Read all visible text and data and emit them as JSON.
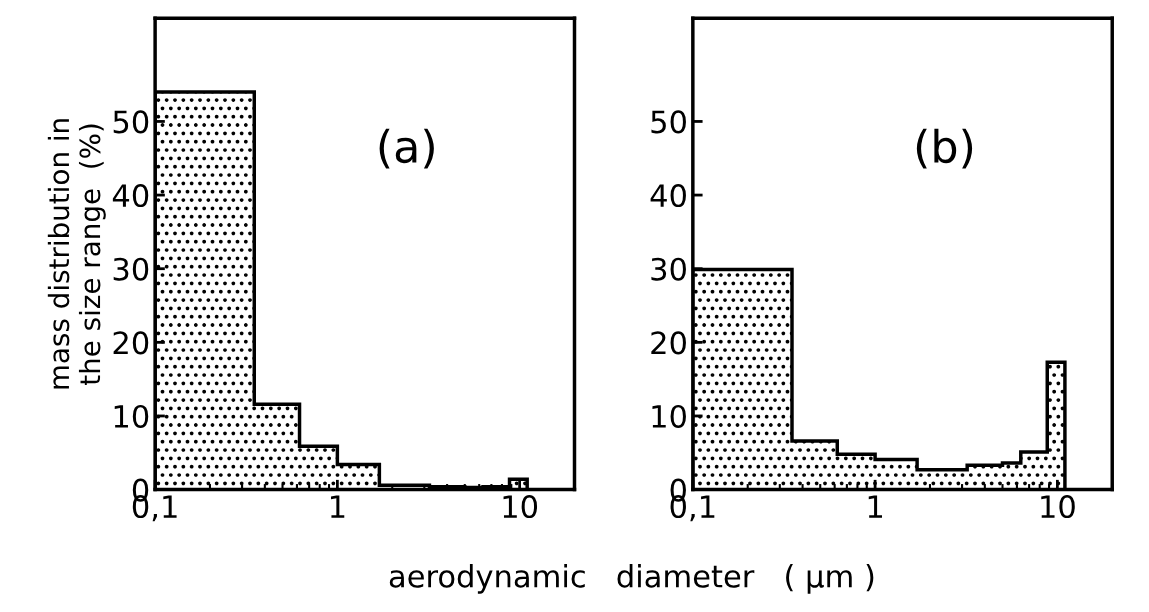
{
  "chart_data": [
    {
      "type": "histogram",
      "ylabel": "mass distribution in\nthe size range  (%)",
      "annotations": [
        "(a)"
      ],
      "log": "x",
      "color": "#000000",
      "bins": [
        0.1,
        0.35,
        0.62,
        1.0,
        1.7,
        3.2,
        5.0,
        6.3,
        8.8,
        11
      ],
      "values": [
        54,
        11.6,
        5.9,
        3.4,
        0.6,
        0.4,
        0.3,
        0.4,
        1.4
      ],
      "xlim": [
        0.1,
        20
      ],
      "xticks": [
        {
          "value": 0.1,
          "label": "0,1"
        },
        1,
        10
      ],
      "ylim": [
        0,
        64
      ],
      "yticks": [
        0,
        10,
        20,
        30,
        40,
        50
      ],
      "grid": false
    },
    {
      "type": "histogram",
      "xlabel": "aerodynamic   diameter   ( μm )",
      "annotations": [
        "(b)"
      ],
      "log": "x",
      "color": "#000000",
      "bins": [
        0.1,
        0.35,
        0.62,
        1.0,
        1.7,
        3.2,
        5.0,
        6.3,
        8.8,
        11
      ],
      "values": [
        29.9,
        6.6,
        4.8,
        4.1,
        2.7,
        3.3,
        3.6,
        5.1,
        17.3
      ],
      "xlim": [
        0.1,
        20
      ],
      "xticks": [
        {
          "value": 0.1,
          "label": "0,1"
        },
        1,
        10
      ],
      "ylim": [
        0,
        64
      ],
      "yticks": [
        0,
        10,
        20,
        30,
        40,
        50
      ],
      "grid": false
    }
  ]
}
